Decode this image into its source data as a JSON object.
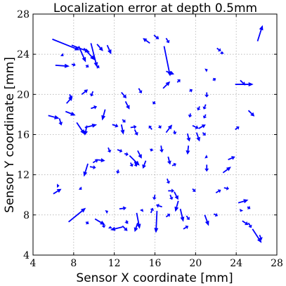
{
  "chart_data": {
    "type": "quiver",
    "title": "Localization error at depth 0.5mm",
    "xlabel": "Sensor X coordinate [mm]",
    "ylabel": "Sensor Y coordinate [mm]",
    "xlim": [
      4,
      28
    ],
    "ylim": [
      4,
      28
    ],
    "xticks": [
      4,
      8,
      12,
      16,
      20,
      24,
      28
    ],
    "yticks": [
      4,
      8,
      12,
      16,
      20,
      24,
      28
    ],
    "grid": true,
    "color": "#0000ff",
    "arrows": [
      [
        5.9,
        25.5,
        8.6,
        24.4
      ],
      [
        7.8,
        24.9,
        9.6,
        24.2
      ],
      [
        8.5,
        24.8,
        9.2,
        23.2
      ],
      [
        9.7,
        25.1,
        10.3,
        22.7
      ],
      [
        9.0,
        24.6,
        10.1,
        23.4
      ],
      [
        10.3,
        25.0,
        10.9,
        24.3
      ],
      [
        11.3,
        24.9,
        11.7,
        24.0
      ],
      [
        6.2,
        22.9,
        7.6,
        22.8
      ],
      [
        7.8,
        23.0,
        8.2,
        22.9
      ],
      [
        10.3,
        22.6,
        10.5,
        22.9
      ],
      [
        15.9,
        25.9,
        16.4,
        25.5
      ],
      [
        15.5,
        25.1,
        14.8,
        25.6
      ],
      [
        17.1,
        25.6,
        17.4,
        25.1
      ],
      [
        16.9,
        24.8,
        17.5,
        21.8
      ],
      [
        17.1,
        22.3,
        17.9,
        22.0
      ],
      [
        16.8,
        20.6,
        17.5,
        21.3
      ],
      [
        22.1,
        24.6,
        22.5,
        24.3
      ],
      [
        26.1,
        25.3,
        26.6,
        26.9
      ],
      [
        21.0,
        22.4,
        21.2,
        22.5
      ],
      [
        21.7,
        21.4,
        22.0,
        21.6
      ],
      [
        23.9,
        21.0,
        25.7,
        21.0
      ],
      [
        24.4,
        21.4,
        24.9,
        20.9
      ],
      [
        9.9,
        20.3,
        9.7,
        19.8
      ],
      [
        8.8,
        20.0,
        9.4,
        20.5
      ],
      [
        7.6,
        20.0,
        7.8,
        19.6
      ],
      [
        7.3,
        19.1,
        7.9,
        19.8
      ],
      [
        9.7,
        18.6,
        10.3,
        18.8
      ],
      [
        11.1,
        18.5,
        10.8,
        17.4
      ],
      [
        12.7,
        20.2,
        13.2,
        19.6
      ],
      [
        14.4,
        20.6,
        14.7,
        20.1
      ],
      [
        13.1,
        19.3,
        13.5,
        18.5
      ],
      [
        16.0,
        19.3,
        15.8,
        19.0
      ],
      [
        19.4,
        20.3,
        19.7,
        20.5
      ],
      [
        21.1,
        20.2,
        21.1,
        19.7
      ],
      [
        21.0,
        19.0,
        20.8,
        18.5
      ],
      [
        20.4,
        18.8,
        20.2,
        18.4
      ],
      [
        21.0,
        18.0,
        20.8,
        17.6
      ],
      [
        5.5,
        17.9,
        6.6,
        17.6
      ],
      [
        6.6,
        17.6,
        6.8,
        16.9
      ],
      [
        7.2,
        18.3,
        8.2,
        17.9
      ],
      [
        9.3,
        16.9,
        9.1,
        15.9
      ],
      [
        8.3,
        17.2,
        9.1,
        16.0
      ],
      [
        9.1,
        16.7,
        10.3,
        17.0
      ],
      [
        11.8,
        17.0,
        12.4,
        16.8
      ],
      [
        12.8,
        17.5,
        13.1,
        17.2
      ],
      [
        12.7,
        17.0,
        12.9,
        16.0
      ],
      [
        13.6,
        16.7,
        14.2,
        16.8
      ],
      [
        14.0,
        16.5,
        14.3,
        15.9
      ],
      [
        15.7,
        16.5,
        15.4,
        16.9
      ],
      [
        16.4,
        16.9,
        16.6,
        16.6
      ],
      [
        17.1,
        16.2,
        17.7,
        17.0
      ],
      [
        17.9,
        16.4,
        18.0,
        16.0
      ],
      [
        19.5,
        18.1,
        19.4,
        17.7
      ],
      [
        19.7,
        16.9,
        20.3,
        16.6
      ],
      [
        20.3,
        16.6,
        21.0,
        17.0
      ],
      [
        20.7,
        16.2,
        21.0,
        15.9
      ],
      [
        25.2,
        18.4,
        25.8,
        17.8
      ],
      [
        19.2,
        16.1,
        19.4,
        15.3
      ],
      [
        20.1,
        16.2,
        20.4,
        15.3
      ],
      [
        11.4,
        14.7,
        11.6,
        14.2
      ],
      [
        10.2,
        13.5,
        11.1,
        13.4
      ],
      [
        9.9,
        13.2,
        10.4,
        13.5
      ],
      [
        9.6,
        12.8,
        10.2,
        12.7
      ],
      [
        9.4,
        13.1,
        9.0,
        11.8
      ],
      [
        12.3,
        14.5,
        12.8,
        14.3
      ],
      [
        13.0,
        14.1,
        13.4,
        14.0
      ],
      [
        13.5,
        13.9,
        14.5,
        12.9
      ],
      [
        13.6,
        13.2,
        13.8,
        12.8
      ],
      [
        14.3,
        14.4,
        14.7,
        13.6
      ],
      [
        12.4,
        12.5,
        12.3,
        12.1
      ],
      [
        14.0,
        13.3,
        14.2,
        12.8
      ],
      [
        15.1,
        13.4,
        14.8,
        12.6
      ],
      [
        15.7,
        14.6,
        15.6,
        14.3
      ],
      [
        16.6,
        14.9,
        16.7,
        14.2
      ],
      [
        17.3,
        13.8,
        17.5,
        13.0
      ],
      [
        17.7,
        12.9,
        18.1,
        13.1
      ],
      [
        19.3,
        14.9,
        19.2,
        14.0
      ],
      [
        21.0,
        13.8,
        21.2,
        13.7
      ],
      [
        21.1,
        13.0,
        21.1,
        12.3
      ],
      [
        23.2,
        13.5,
        23.9,
        13.8
      ],
      [
        22.7,
        12.2,
        23.5,
        12.8
      ],
      [
        17.2,
        11.6,
        17.4,
        11.1
      ],
      [
        6.4,
        10.9,
        6.6,
        10.9
      ],
      [
        6.0,
        10.1,
        6.8,
        10.6
      ],
      [
        8.6,
        10.7,
        8.8,
        10.5
      ],
      [
        7.5,
        7.3,
        9.2,
        8.7
      ],
      [
        9.2,
        7.3,
        9.5,
        7.1
      ],
      [
        11.2,
        8.3,
        11.4,
        8.4
      ],
      [
        14.7,
        8.4,
        14.8,
        8.6
      ],
      [
        14.2,
        8.2,
        14.5,
        6.6
      ],
      [
        14.3,
        7.2,
        14.0,
        6.3
      ],
      [
        15.6,
        8.2,
        15.8,
        8.7
      ],
      [
        16.7,
        8.8,
        16.1,
        9.0
      ],
      [
        17.1,
        7.8,
        17.5,
        8.1
      ],
      [
        16.2,
        8.4,
        16.1,
        6.2
      ],
      [
        13.2,
        7.2,
        13.3,
        7.4
      ],
      [
        10.1,
        7.6,
        11.1,
        7.0
      ],
      [
        10.9,
        7.2,
        11.0,
        6.7
      ],
      [
        11.6,
        6.8,
        11.6,
        6.9
      ],
      [
        12.8,
        6.8,
        11.6,
        6.5
      ],
      [
        12.8,
        6.9,
        13.3,
        6.4
      ],
      [
        12.5,
        8.6,
        13.2,
        8.7
      ],
      [
        13.3,
        7.3,
        13.4,
        7.3
      ],
      [
        18.3,
        9.4,
        18.0,
        8.3
      ],
      [
        17.5,
        10.0,
        17.7,
        9.5
      ],
      [
        17.3,
        10.4,
        17.9,
        10.4
      ],
      [
        17.9,
        10.3,
        18.3,
        9.5
      ],
      [
        18.5,
        8.6,
        18.8,
        7.3
      ],
      [
        19.1,
        7.9,
        19.4,
        7.5
      ],
      [
        19.7,
        10.6,
        20.0,
        10.3
      ],
      [
        20.9,
        8.0,
        21.3,
        6.9
      ],
      [
        21.8,
        8.1,
        22.2,
        7.9
      ],
      [
        22.0,
        10.2,
        22.5,
        10.5
      ],
      [
        22.8,
        10.7,
        23.3,
        10.6
      ],
      [
        24.2,
        9.2,
        25.2,
        9.5
      ],
      [
        25.1,
        8.8,
        25.4,
        8.6
      ],
      [
        24.6,
        7.4,
        25.2,
        7.0
      ],
      [
        24.5,
        8.5,
        24.4,
        8.3
      ],
      [
        25.2,
        7.2,
        25.5,
        6.7
      ],
      [
        25.6,
        6.6,
        26.5,
        5.2
      ],
      [
        26.3,
        6.0,
        26.5,
        5.5
      ],
      [
        9.2,
        22.9,
        9.5,
        22.7
      ],
      [
        18.2,
        21.2,
        18.5,
        21.5
      ],
      [
        22.6,
        24.0,
        22.6,
        24.3
      ],
      [
        18.8,
        6.6,
        19.3,
        6.9
      ],
      [
        16.0,
        10.0,
        15.9,
        9.5
      ],
      [
        6.9,
        23.9,
        7.0,
        23.8
      ],
      [
        23.9,
        16.5,
        24.3,
        16.8
      ]
    ]
  }
}
